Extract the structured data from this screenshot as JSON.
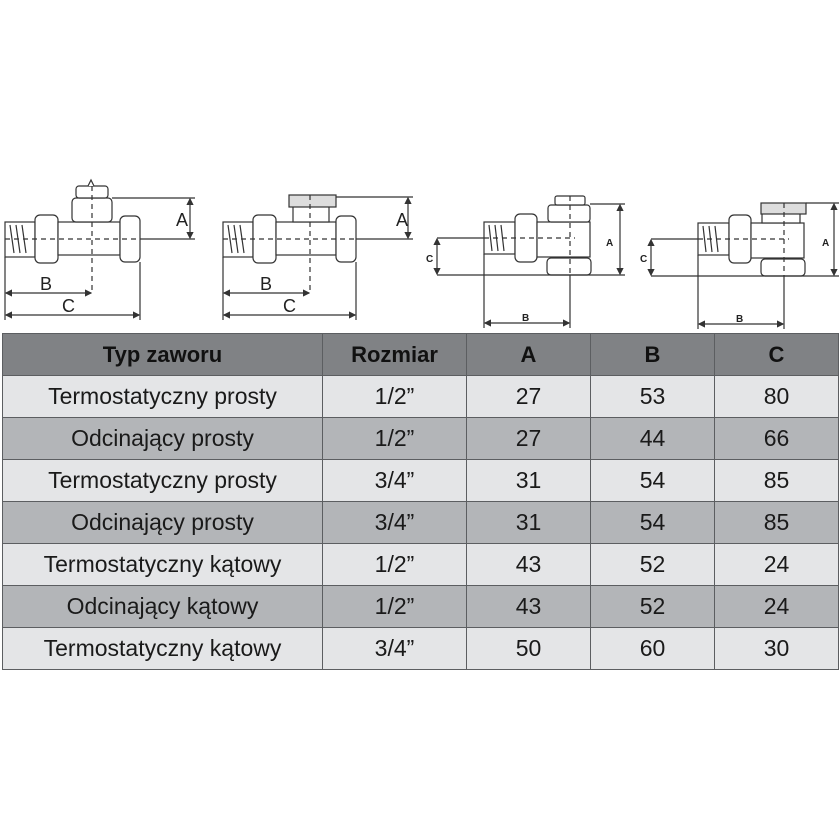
{
  "diagrams": [
    {
      "type": "straight-thermostatic",
      "labels": {
        "A": "A",
        "B": "B",
        "C": "C"
      }
    },
    {
      "type": "straight-shutoff",
      "labels": {
        "A": "A",
        "B": "B",
        "C": "C"
      }
    },
    {
      "type": "angle-thermostatic",
      "labels": {
        "A": "A",
        "B": "B",
        "C": "C"
      }
    },
    {
      "type": "angle-shutoff",
      "labels": {
        "A": "A",
        "B": "B",
        "C": "C"
      }
    }
  ],
  "table": {
    "headers": [
      "Typ zaworu",
      "Rozmiar",
      "A",
      "B",
      "C"
    ],
    "rows": [
      [
        "Termostatyczny prosty",
        "1/2”",
        "27",
        "53",
        "80"
      ],
      [
        "Odcinający prosty",
        "1/2”",
        "27",
        "44",
        "66"
      ],
      [
        "Termostatyczny prosty",
        "3/4”",
        "31",
        "54",
        "85"
      ],
      [
        "Odcinający prosty",
        "3/4”",
        "31",
        "54",
        "85"
      ],
      [
        "Termostatyczny kątowy",
        "1/2”",
        "43",
        "52",
        "24"
      ],
      [
        "Odcinający kątowy",
        "1/2”",
        "43",
        "52",
        "24"
      ],
      [
        "Termostatyczny kątowy",
        "3/4”",
        "50",
        "60",
        "30"
      ]
    ]
  },
  "colors": {
    "header_bg": "#808285",
    "row_light": "#e4e5e7",
    "row_dark": "#b3b5b8"
  }
}
